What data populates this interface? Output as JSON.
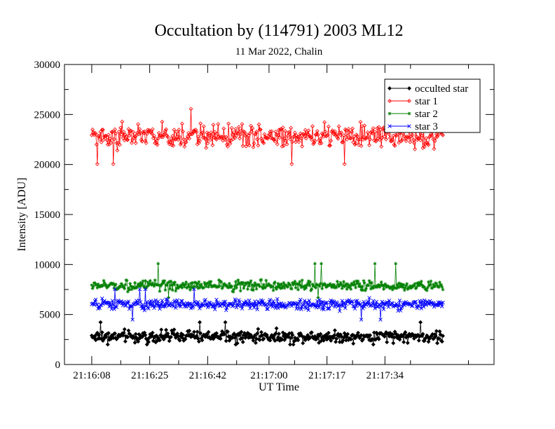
{
  "chart_data": {
    "type": "line",
    "title": "Occultation by (114791)  2003 ML12",
    "subtitle": "11 Mar 2022, Chalin",
    "xlabel": "UT Time",
    "ylabel": "Intensity [ADU]",
    "xlim": [
      "21:16:00",
      "21:18:06"
    ],
    "ylim": [
      0,
      30000
    ],
    "x_ticks": [
      "21:16:08",
      "21:16:25",
      "21:16:42",
      "21:17:00",
      "21:17:17",
      "21:17:34"
    ],
    "y_ticks": [
      "0",
      "5000",
      "10000",
      "15000",
      "20000",
      "25000",
      "30000"
    ],
    "grid": false,
    "legend_position": "top-right",
    "x_range_of_data": [
      "21:16:08",
      "21:17:51"
    ],
    "series": [
      {
        "name": "occulted star",
        "color": "#000000",
        "marker": "diamond",
        "mean": 2800,
        "noise_amplitude": 700,
        "min": 2000,
        "max": 4300
      },
      {
        "name": "star 1",
        "color": "#ff0000",
        "marker": "diamond",
        "mean": 22800,
        "noise_amplitude": 1400,
        "min": 18600,
        "max": 25700
      },
      {
        "name": "star 2",
        "color": "#008000",
        "marker": "star",
        "mean": 7900,
        "noise_amplitude": 600,
        "min": 6700,
        "max": 10200
      },
      {
        "name": "star 3",
        "color": "#0000ff",
        "marker": "x",
        "mean": 6000,
        "noise_amplitude": 600,
        "min": 4400,
        "max": 7600
      }
    ],
    "samples_per_series": 440
  }
}
